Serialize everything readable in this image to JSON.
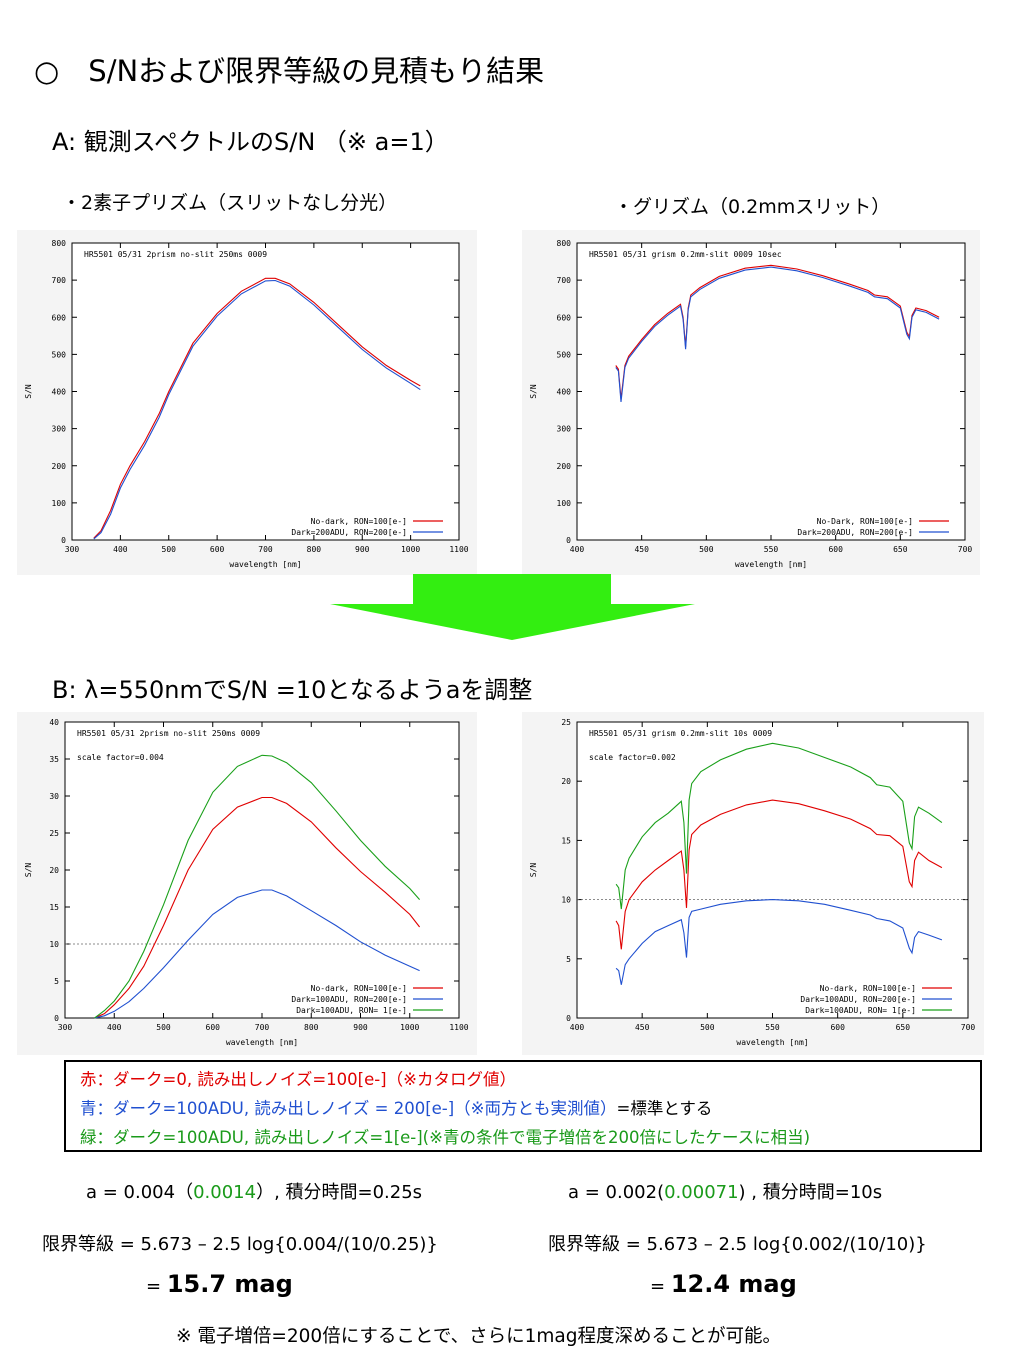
{
  "slide": {
    "title": "○　S/Nおよび限界等級の見積もり結果",
    "section_a": "A: 観測スペクトルのS/N （※ a=1）",
    "section_b": "B: λ=550nmでS/N =10となるようaを調整",
    "sub_left": "・2素子プリズム（スリットなし分光）",
    "sub_right": "・グリズム（0.2mmスリット）"
  },
  "colors": {
    "red": "#e00000",
    "blue": "#2050d0",
    "green": "#1aa01a",
    "arrow": "#33ee11",
    "legend_green_text": "#1a9a1a"
  },
  "legend": {
    "red": "赤：ダーク=0,  読み出しノイズ=100[e-]（※カタログ値）",
    "blue": "青：ダーク=100ADU, 読み出しノイズ = 200[e-]（※両方とも実測値）",
    "blue_suffix": "=標準とする",
    "green": "緑：ダーク=100ADU, 読み出しノイズ=1[e-](※青の条件で電子増倍を200倍にしたケースに相当)"
  },
  "results": {
    "left_a_prefix": "a = 0.004（",
    "left_a_green": "0.0014",
    "left_a_suffix": "）,  積分時間=0.25s",
    "right_a_prefix": "a = 0.002(",
    "right_a_green": "0.00071",
    "right_a_suffix": ") ,  積分時間=10s",
    "left_formula": "限界等級 = 5.673 – 2.5 log{0.004/(10/0.25)}",
    "right_formula": "限界等級 = 5.673 – 2.5 log{0.002/(10/10)}",
    "left_mag_prefix": "= ",
    "left_mag": "15.7 mag",
    "right_mag_prefix": "= ",
    "right_mag": "12.4 mag",
    "note": "※ 電子増倍=200倍にすることで、さらに1mag程度深めることが可能。"
  },
  "chart_data": [
    {
      "id": "a_prism",
      "type": "line",
      "title": "HR5501 05/31 2prism no-slit 250ms 0009",
      "xlabel": "wavelength [nm]",
      "ylabel": "S/N",
      "xlim": [
        300,
        1100
      ],
      "ylim": [
        0,
        800
      ],
      "xticks": [
        300,
        400,
        500,
        600,
        700,
        800,
        900,
        1000,
        1100
      ],
      "yticks": [
        0,
        100,
        200,
        300,
        400,
        500,
        600,
        700,
        800
      ],
      "legend_position": "bottom-right",
      "series": [
        {
          "name": "No-dark, RON=100[e-]",
          "color": "#e00000",
          "x": [
            345,
            360,
            380,
            400,
            420,
            450,
            480,
            500,
            550,
            600,
            650,
            700,
            720,
            750,
            800,
            850,
            900,
            950,
            1000,
            1020
          ],
          "y": [
            5,
            25,
            80,
            150,
            200,
            265,
            340,
            400,
            530,
            610,
            670,
            705,
            705,
            690,
            640,
            580,
            520,
            470,
            430,
            415
          ]
        },
        {
          "name": "Dark=200ADU, RON=200[e-]",
          "color": "#2050d0",
          "x": [
            345,
            360,
            380,
            400,
            420,
            450,
            480,
            500,
            550,
            600,
            650,
            700,
            720,
            750,
            800,
            850,
            900,
            950,
            1000,
            1020
          ],
          "y": [
            3,
            20,
            70,
            140,
            190,
            255,
            330,
            392,
            522,
            603,
            663,
            698,
            699,
            684,
            633,
            573,
            513,
            463,
            422,
            405
          ]
        }
      ]
    },
    {
      "id": "a_grism",
      "type": "line",
      "title": "HR5501 05/31 grism 0.2mm-slit 0009 10sec",
      "xlabel": "wavelength [nm]",
      "ylabel": "S/N",
      "xlim": [
        400,
        700
      ],
      "ylim": [
        0,
        800
      ],
      "xticks": [
        400,
        450,
        500,
        550,
        600,
        650,
        700
      ],
      "yticks": [
        0,
        100,
        200,
        300,
        400,
        500,
        600,
        700,
        800
      ],
      "legend_position": "bottom-right",
      "series": [
        {
          "name": "No-Dark, RON=100[e-]",
          "color": "#e00000",
          "x": [
            430,
            432,
            434,
            437,
            440,
            450,
            460,
            470,
            480,
            482,
            484,
            486,
            488,
            495,
            510,
            530,
            550,
            570,
            590,
            610,
            625,
            630,
            640,
            650,
            655,
            657,
            659,
            662,
            670,
            680
          ],
          "y": [
            470,
            460,
            380,
            470,
            495,
            540,
            580,
            610,
            635,
            600,
            520,
            625,
            660,
            680,
            710,
            732,
            740,
            730,
            712,
            690,
            672,
            660,
            655,
            630,
            560,
            548,
            605,
            625,
            618,
            600
          ]
        },
        {
          "name": "Dark=200ADU, RON=200[e-]",
          "color": "#2050d0",
          "x": [
            430,
            432,
            434,
            437,
            440,
            450,
            460,
            470,
            480,
            482,
            484,
            486,
            488,
            495,
            510,
            530,
            550,
            570,
            590,
            610,
            625,
            630,
            640,
            650,
            655,
            657,
            659,
            662,
            670,
            680
          ],
          "y": [
            465,
            455,
            372,
            465,
            490,
            535,
            575,
            605,
            630,
            594,
            514,
            620,
            655,
            675,
            705,
            727,
            735,
            725,
            707,
            685,
            667,
            655,
            650,
            625,
            554,
            542,
            600,
            620,
            613,
            595
          ]
        }
      ]
    },
    {
      "id": "b_prism",
      "type": "line",
      "title": "HR5501 05/31 2prism no-slit 250ms 0009",
      "annotation": "scale factor=0.004",
      "xlabel": "wavelength [nm]",
      "ylabel": "S/N",
      "xlim": [
        300,
        1100
      ],
      "ylim": [
        0,
        40
      ],
      "xticks": [
        300,
        400,
        500,
        600,
        700,
        800,
        900,
        1000,
        1100
      ],
      "yticks": [
        0,
        5,
        10,
        15,
        20,
        25,
        30,
        35,
        40
      ],
      "hline": 10,
      "legend_position": "bottom-right",
      "series": [
        {
          "name": "No-dark, RON=100[e-]",
          "color": "#e00000",
          "x": [
            360,
            380,
            400,
            430,
            460,
            500,
            550,
            600,
            650,
            700,
            720,
            750,
            800,
            850,
            900,
            950,
            1000,
            1020
          ],
          "y": [
            0,
            0.6,
            1.8,
            4,
            7,
            12.5,
            20,
            25.5,
            28.5,
            29.8,
            29.8,
            29,
            26.5,
            23,
            19.8,
            17,
            14,
            12.3
          ]
        },
        {
          "name": "Dark=100ADU, RON=200[e-]",
          "color": "#2050d0",
          "x": [
            360,
            380,
            400,
            430,
            460,
            500,
            550,
            600,
            650,
            700,
            720,
            750,
            800,
            850,
            900,
            950,
            1000,
            1020
          ],
          "y": [
            0,
            0.3,
            0.9,
            2.2,
            4,
            6.8,
            10.5,
            14,
            16.3,
            17.3,
            17.3,
            16.5,
            14.5,
            12.5,
            10.3,
            8.5,
            7,
            6.4
          ]
        },
        {
          "name": "Dark=100ADU, RON=  1[e-]",
          "color": "#1aa01a",
          "x": [
            360,
            380,
            400,
            430,
            460,
            500,
            550,
            600,
            650,
            700,
            720,
            750,
            800,
            850,
            900,
            950,
            1000,
            1020
          ],
          "y": [
            0,
            1,
            2.3,
            5,
            9,
            15.3,
            24,
            30.5,
            34,
            35.5,
            35.4,
            34.5,
            31.8,
            28,
            24,
            20.5,
            17.5,
            16
          ]
        }
      ]
    },
    {
      "id": "b_grism",
      "type": "line",
      "title": "HR5501 05/31 grism 0.2mm-slit 10s 0009",
      "annotation": "scale factor=0.002",
      "xlabel": "wavelength [nm]",
      "ylabel": "S/N",
      "xlim": [
        400,
        700
      ],
      "ylim": [
        0,
        25
      ],
      "xticks": [
        400,
        450,
        500,
        550,
        600,
        650,
        700
      ],
      "yticks": [
        0,
        5,
        10,
        15,
        20,
        25
      ],
      "hline": 10,
      "legend_position": "bottom-right",
      "series": [
        {
          "name": "No-dark, RON=100[e-]",
          "color": "#e00000",
          "x": [
            430,
            432,
            434,
            437,
            440,
            450,
            460,
            470,
            480,
            482,
            484,
            486,
            488,
            495,
            510,
            530,
            550,
            570,
            590,
            610,
            625,
            630,
            640,
            650,
            655,
            657,
            659,
            662,
            670,
            680
          ],
          "y": [
            8.2,
            7.8,
            5.8,
            9,
            10,
            11.5,
            12.5,
            13.3,
            14.1,
            12.5,
            9.3,
            14.2,
            15.5,
            16.3,
            17.2,
            18,
            18.4,
            18.1,
            17.5,
            16.8,
            16,
            15.5,
            15.4,
            14.5,
            11.5,
            11.1,
            13.3,
            14,
            13.3,
            12.7
          ]
        },
        {
          "name": "Dark=100ADU, RON=200[e-]",
          "color": "#2050d0",
          "x": [
            430,
            432,
            434,
            437,
            440,
            450,
            460,
            470,
            480,
            482,
            484,
            486,
            488,
            495,
            510,
            530,
            550,
            570,
            590,
            610,
            625,
            630,
            640,
            650,
            655,
            657,
            659,
            662,
            670,
            680
          ],
          "y": [
            4.2,
            4,
            2.8,
            4.5,
            5,
            6.3,
            7.3,
            7.8,
            8.3,
            7.2,
            5.1,
            8.5,
            9,
            9.2,
            9.6,
            9.9,
            10,
            9.9,
            9.6,
            9.1,
            8.7,
            8.4,
            8.2,
            7.6,
            5.9,
            5.5,
            6.8,
            7.3,
            7,
            6.6
          ]
        },
        {
          "name": "Dark=100ADU, RON=  1[e-]",
          "color": "#1aa01a",
          "x": [
            430,
            432,
            434,
            437,
            440,
            450,
            460,
            470,
            480,
            482,
            484,
            486,
            488,
            495,
            510,
            530,
            550,
            570,
            590,
            610,
            625,
            630,
            640,
            650,
            655,
            657,
            659,
            662,
            670,
            680
          ],
          "y": [
            11.3,
            11,
            9.2,
            12.5,
            13.5,
            15.3,
            16.5,
            17.3,
            18.3,
            16.5,
            12.2,
            18.4,
            19.8,
            20.8,
            21.8,
            22.7,
            23.2,
            22.8,
            22,
            21.2,
            20.3,
            19.7,
            19.5,
            18.3,
            14.8,
            14.3,
            17,
            17.8,
            17.3,
            16.5
          ]
        }
      ]
    }
  ]
}
